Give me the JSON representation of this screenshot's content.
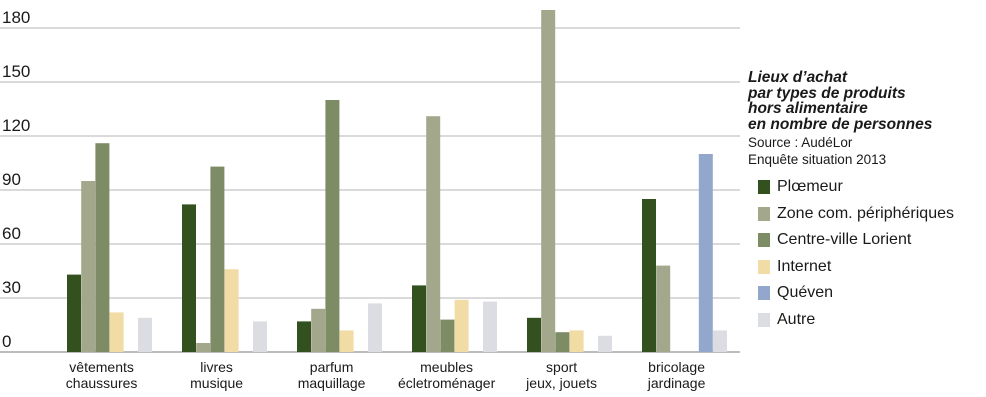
{
  "chart_data": {
    "type": "bar",
    "title_lines": [
      "Lieux d’achat",
      "par types de produits",
      "hors alimentaire",
      "en nombre de personnes"
    ],
    "source_lines": [
      "Source : AudéLor",
      "Enquête situation 2013"
    ],
    "categories": [
      [
        "vêtements",
        "chaussures"
      ],
      [
        "livres",
        "musique"
      ],
      [
        "parfum",
        "maquillage"
      ],
      [
        "meubles",
        "écletroménager"
      ],
      [
        "sport",
        "jeux, jouets"
      ],
      [
        "bricolage",
        "jardinage"
      ]
    ],
    "yticks": [
      "0",
      "30",
      "60",
      "90",
      "120",
      "150",
      "180"
    ],
    "ylim": [
      0,
      190
    ],
    "grid": true,
    "legend_position": "right",
    "series": [
      {
        "name": "Plœmeur",
        "color": "#33501f",
        "values": [
          43,
          82,
          17,
          37,
          19,
          85
        ]
      },
      {
        "name": "Zone com. périphériques",
        "color": "#a3a88d",
        "values": [
          95,
          5,
          24,
          131,
          190,
          48
        ]
      },
      {
        "name": "Centre-ville Lorient",
        "color": "#7e8c66",
        "values": [
          116,
          103,
          140,
          18,
          11,
          null
        ]
      },
      {
        "name": "Internet",
        "color": "#f1dca6",
        "values": [
          22,
          46,
          12,
          29,
          12,
          null
        ]
      },
      {
        "name": "Quéven",
        "color": "#93a7cc",
        "values": [
          null,
          null,
          null,
          null,
          null,
          110
        ]
      },
      {
        "name": "Autre",
        "color": "#dcdde2",
        "values": [
          19,
          17,
          27,
          28,
          9,
          12
        ]
      }
    ]
  }
}
